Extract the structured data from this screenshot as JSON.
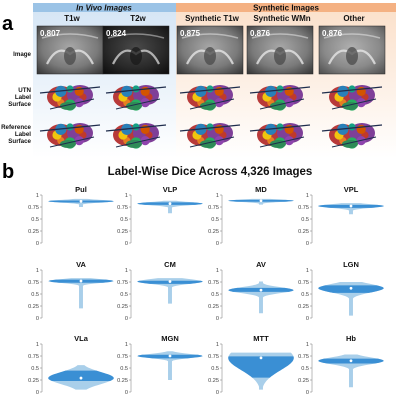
{
  "panel_a": {
    "letter": "a",
    "groups": [
      {
        "title": "In Vivo Images",
        "color": "#9bc3e6"
      },
      {
        "title": "Synthetic Images",
        "color": "#f4b183"
      }
    ],
    "columns": [
      {
        "title": "T1w",
        "dice": "0.807",
        "image_style": "t1"
      },
      {
        "title": "T2w",
        "dice": "0.824",
        "image_style": "t2"
      },
      {
        "title": "Synthetic T1w",
        "dice": "0.875",
        "image_style": "t1"
      },
      {
        "title": "Synthetic WMn",
        "dice": "0.876",
        "image_style": "t1"
      },
      {
        "title": "Other",
        "dice": "0.876",
        "image_style": "other"
      }
    ],
    "row_labels": {
      "image": "Image",
      "utn": [
        "UTN",
        "Label",
        "Surface"
      ],
      "reference": [
        "Reference",
        "Label",
        "Surface"
      ]
    }
  },
  "panel_b": {
    "letter": "b"
  },
  "chart_data": {
    "type": "violin",
    "title": "Label-Wise Dice Across 4,326 Images",
    "ylim": [
      0,
      1
    ],
    "yticks": [
      0,
      0.25,
      0.5,
      0.75,
      1
    ],
    "ytick_labels": [
      "0",
      "0.25",
      "0.5",
      "0.75",
      "1"
    ],
    "colors": {
      "body": "#a9cfea",
      "core": "#3a8fd4",
      "median": "#ffffff"
    },
    "series": [
      {
        "name": "Pul",
        "min": 0.75,
        "q1": 0.84,
        "median": 0.87,
        "q3": 0.89,
        "max": 0.92
      },
      {
        "name": "VLP",
        "min": 0.62,
        "q1": 0.79,
        "median": 0.82,
        "q3": 0.85,
        "max": 0.88
      },
      {
        "name": "MD",
        "min": 0.8,
        "q1": 0.86,
        "median": 0.88,
        "q3": 0.9,
        "max": 0.92
      },
      {
        "name": "VPL",
        "min": 0.6,
        "q1": 0.73,
        "median": 0.77,
        "q3": 0.8,
        "max": 0.83
      },
      {
        "name": "VA",
        "min": 0.2,
        "q1": 0.73,
        "median": 0.77,
        "q3": 0.8,
        "max": 0.83
      },
      {
        "name": "CM",
        "min": 0.3,
        "q1": 0.7,
        "median": 0.76,
        "q3": 0.79,
        "max": 0.83
      },
      {
        "name": "AV",
        "min": 0.1,
        "q1": 0.53,
        "median": 0.58,
        "q3": 0.64,
        "max": 0.76
      },
      {
        "name": "LGN",
        "min": 0.05,
        "q1": 0.52,
        "median": 0.62,
        "q3": 0.68,
        "max": 0.75
      },
      {
        "name": "VLa",
        "min": 0.05,
        "q1": 0.22,
        "median": 0.29,
        "q3": 0.45,
        "max": 0.56
      },
      {
        "name": "MGN",
        "min": 0.25,
        "q1": 0.7,
        "median": 0.75,
        "q3": 0.78,
        "max": 0.85
      },
      {
        "name": "MTT",
        "min": 0.05,
        "q1": 0.3,
        "median": 0.71,
        "q3": 0.76,
        "max": 0.82
      },
      {
        "name": "Hb",
        "min": 0.1,
        "q1": 0.58,
        "median": 0.65,
        "q3": 0.71,
        "max": 0.78
      }
    ]
  }
}
